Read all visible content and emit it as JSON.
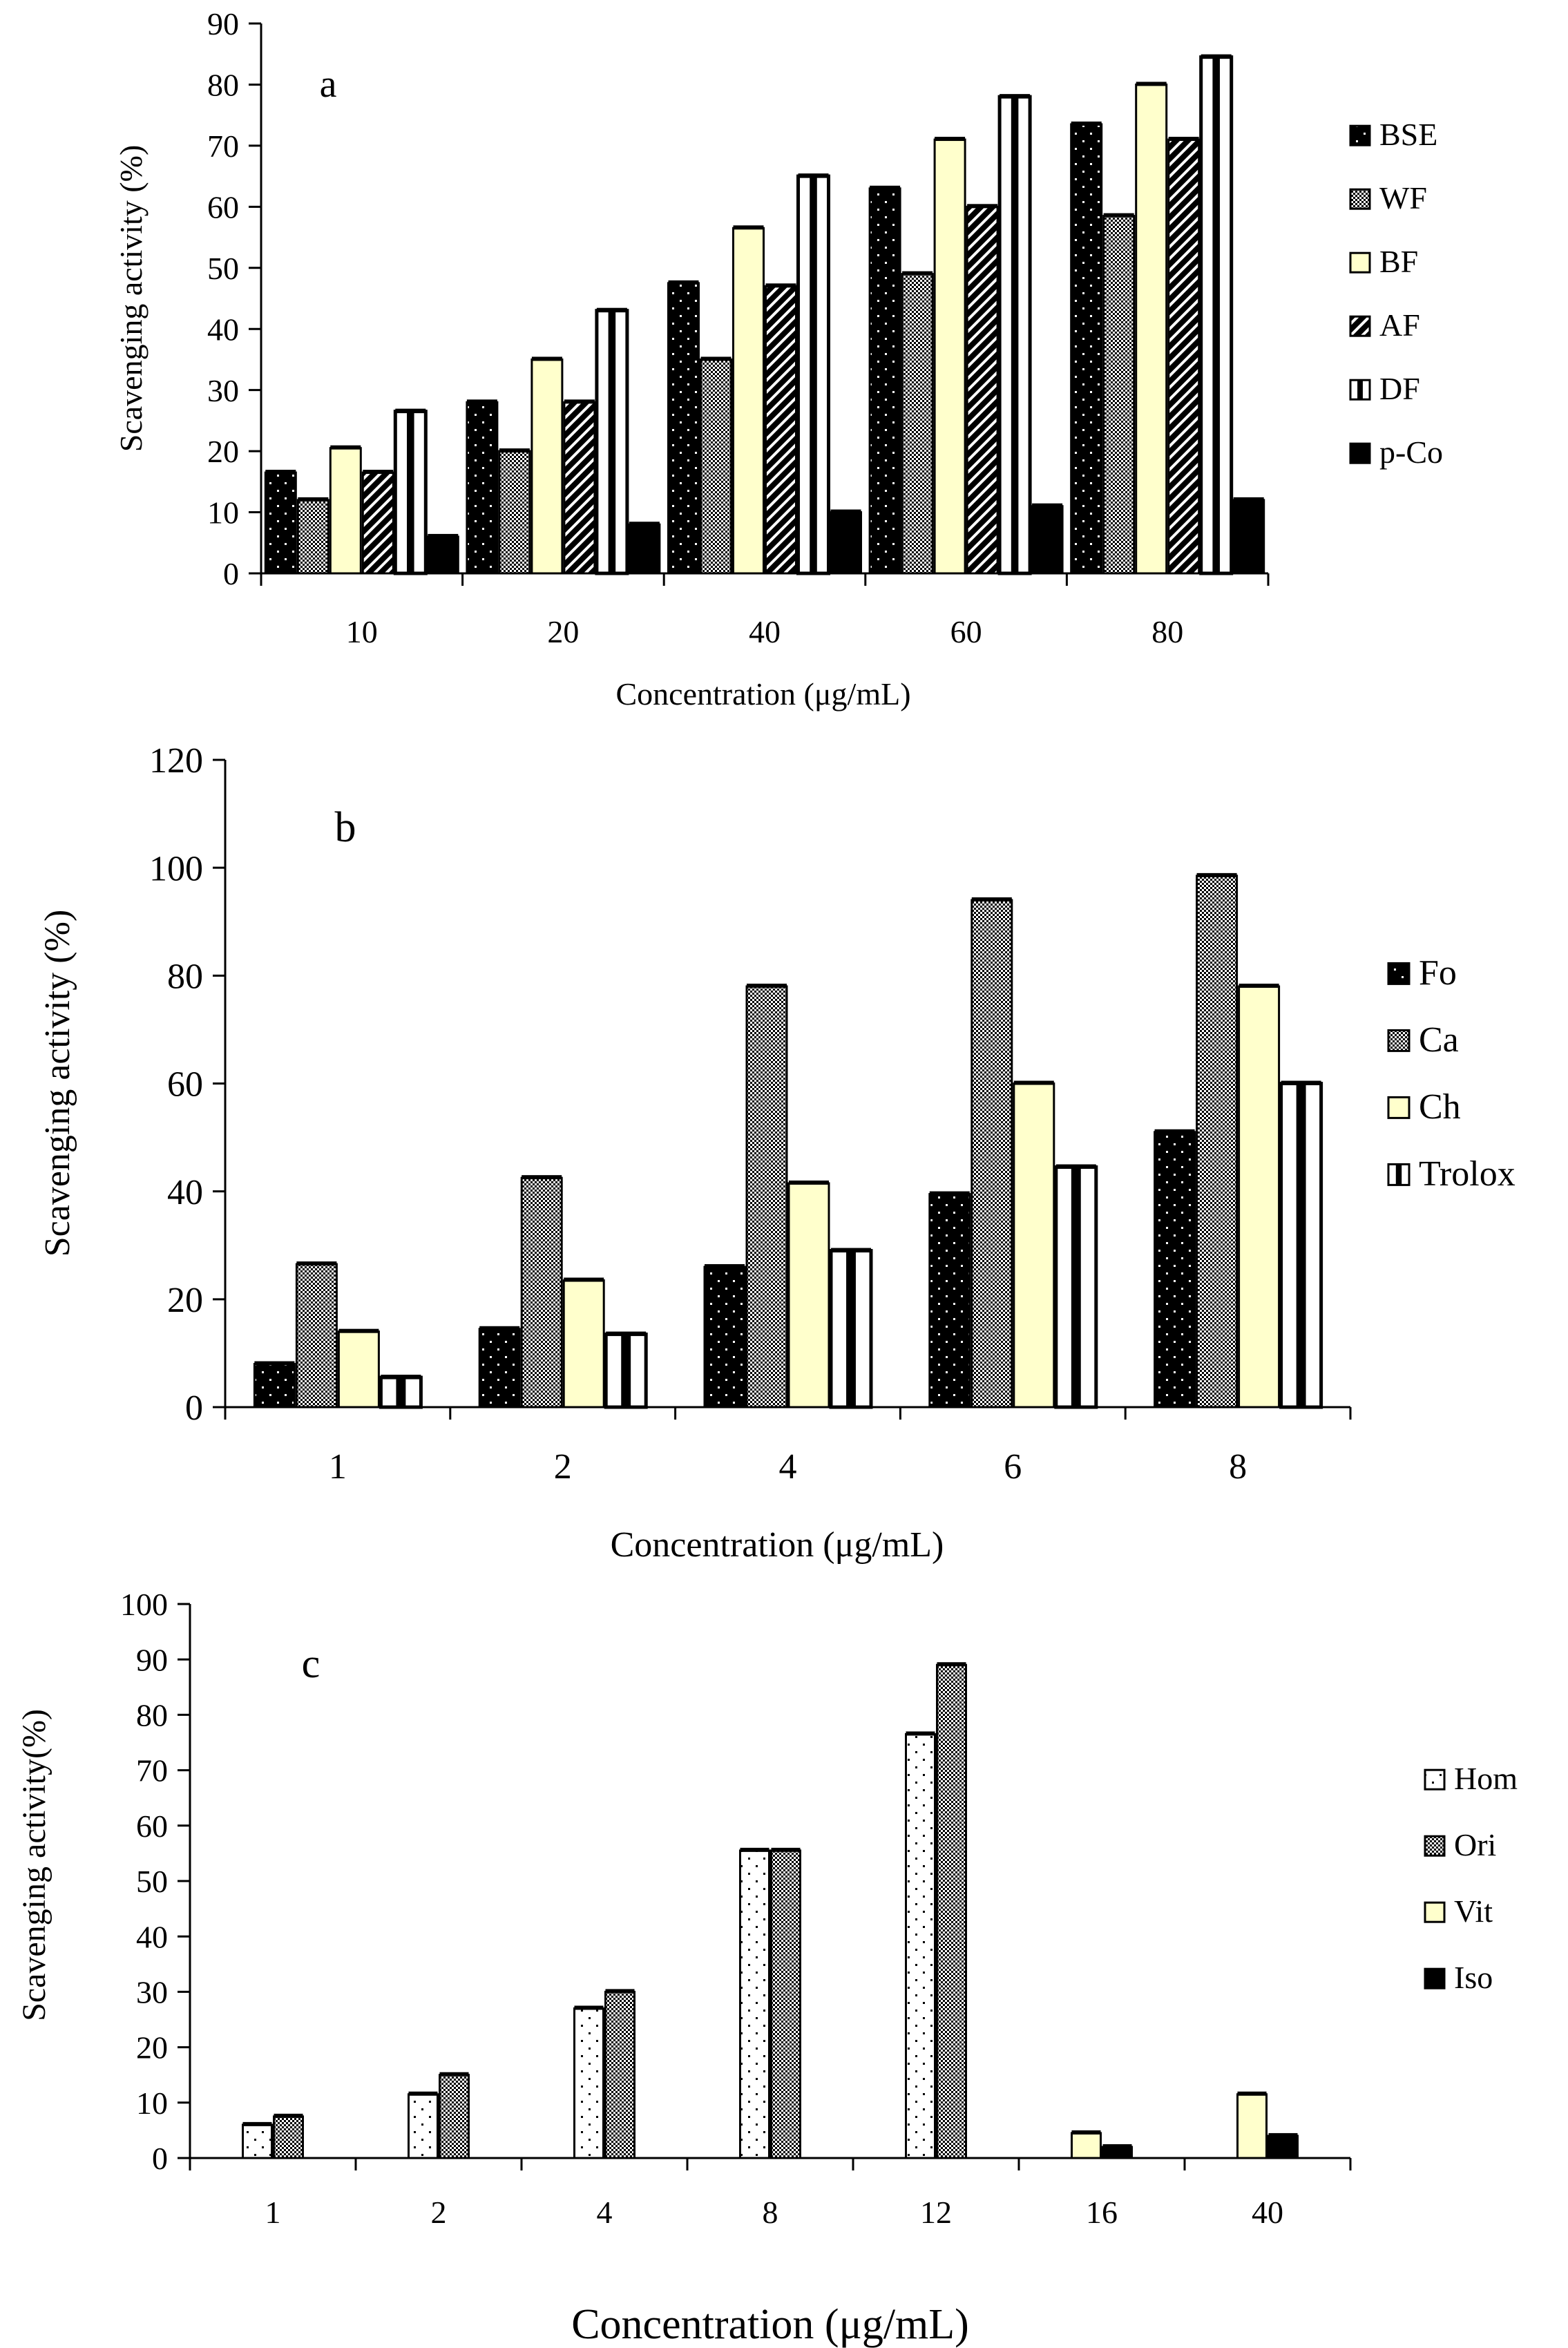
{
  "colors": {
    "black": "#000000",
    "white": "#ffffff",
    "cream": "#ffffcc",
    "gray_check": "#7f7f7f"
  },
  "chart_data": [
    {
      "id": "a",
      "type": "bar",
      "panel_label": "a",
      "title": "",
      "xlabel": "Concentration (μg/mL)",
      "ylabel": "Scavenging activity (%)",
      "ylim": [
        0,
        90
      ],
      "yticks": [
        "0",
        "10",
        "20",
        "30",
        "40",
        "50",
        "60",
        "70",
        "80",
        "90"
      ],
      "categories": [
        "10",
        "20",
        "40",
        "60",
        "80"
      ],
      "legend_position": "right",
      "series": [
        {
          "name": "BSE",
          "pattern": "dots",
          "values": [
            16.5,
            28,
            47.5,
            63,
            73.5
          ]
        },
        {
          "name": "WF",
          "pattern": "check",
          "values": [
            12,
            20,
            35,
            49,
            58.5
          ]
        },
        {
          "name": "BF",
          "pattern": "cream",
          "values": [
            20.5,
            35,
            56.5,
            71,
            80
          ]
        },
        {
          "name": "AF",
          "pattern": "diag",
          "values": [
            16.5,
            28,
            47,
            60,
            71
          ]
        },
        {
          "name": "DF",
          "pattern": "vstripe",
          "values": [
            26.5,
            43,
            65,
            78,
            84.5
          ]
        },
        {
          "name": "p-Co",
          "pattern": "solid",
          "values": [
            6,
            8,
            10,
            11,
            12
          ]
        }
      ]
    },
    {
      "id": "b",
      "type": "bar",
      "panel_label": "b",
      "title": "",
      "xlabel": "Concentration (μg/mL)",
      "ylabel": "Scavenging activity (%)",
      "ylim": [
        0,
        120
      ],
      "yticks": [
        "0",
        "20",
        "40",
        "60",
        "80",
        "100",
        "120"
      ],
      "categories": [
        "1",
        "2",
        "4",
        "6",
        "8"
      ],
      "legend_position": "right",
      "series": [
        {
          "name": "Fo",
          "pattern": "dots",
          "values": [
            8,
            14.5,
            26,
            39.5,
            51
          ]
        },
        {
          "name": "Ca",
          "pattern": "check",
          "values": [
            26.5,
            42.5,
            78,
            94,
            98.5
          ]
        },
        {
          "name": "Ch",
          "pattern": "cream",
          "values": [
            14,
            23.5,
            41.5,
            60,
            78
          ]
        },
        {
          "name": "Trolox",
          "pattern": "vstripe",
          "values": [
            5.5,
            13.5,
            29,
            44.5,
            60
          ]
        }
      ]
    },
    {
      "id": "c",
      "type": "bar",
      "panel_label": "c",
      "title": "",
      "xlabel": "Concentration (μg/mL)",
      "ylabel": "Scavenging activity(%)",
      "ylim": [
        0,
        100
      ],
      "yticks": [
        "0",
        "10",
        "20",
        "30",
        "40",
        "50",
        "60",
        "70",
        "80",
        "90",
        "100"
      ],
      "categories": [
        "1",
        "2",
        "4",
        "8",
        "12",
        "16",
        "40"
      ],
      "legend_position": "right",
      "series": [
        {
          "name": "Hom",
          "pattern": "whitedots",
          "values": [
            6,
            11.5,
            27,
            55.5,
            76.5,
            null,
            null
          ]
        },
        {
          "name": "Ori",
          "pattern": "check",
          "values": [
            7.5,
            15,
            30,
            55.5,
            89,
            null,
            null
          ]
        },
        {
          "name": "Vit",
          "pattern": "cream",
          "values": [
            null,
            null,
            null,
            null,
            null,
            4.5,
            11.5
          ]
        },
        {
          "name": "Iso",
          "pattern": "solid",
          "values": [
            null,
            null,
            null,
            null,
            null,
            2,
            4
          ]
        }
      ]
    }
  ]
}
